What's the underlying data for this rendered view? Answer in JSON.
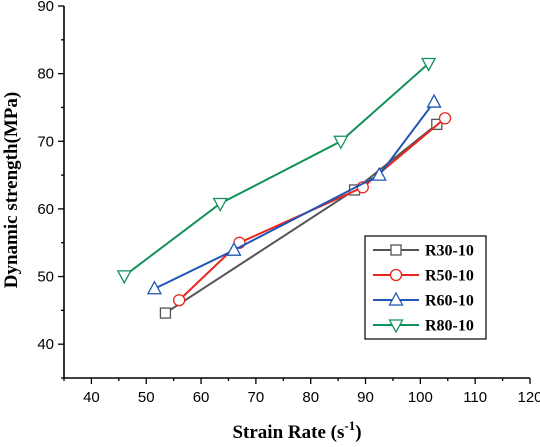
{
  "chart_data": {
    "type": "line",
    "title": "",
    "xlabel": "Strain Rate (s",
    "xlabel_sup": "-1",
    "xlabel_end": ")",
    "ylabel": "Dynamic strength(MPa)",
    "xlim": [
      35,
      120
    ],
    "ylim": [
      35,
      90
    ],
    "xticks": [
      "40",
      "50",
      "60",
      "70",
      "80",
      "90",
      "100",
      "110",
      "120"
    ],
    "yticks": [
      "40",
      "50",
      "60",
      "70",
      "80",
      "90"
    ],
    "legend_placement": "lower-right",
    "grid": false,
    "series": [
      {
        "name": "R30-10",
        "color": "#555555",
        "marker": "square",
        "x": [
          53.5,
          88,
          103
        ],
        "y": [
          44.6,
          62.8,
          72.5
        ]
      },
      {
        "name": "R50-10",
        "color": "#e8261f",
        "marker": "circle",
        "x": [
          56,
          67,
          89.5,
          104.5
        ],
        "y": [
          46.5,
          55,
          63.2,
          73.4
        ]
      },
      {
        "name": "R60-10",
        "color": "#1f56b3",
        "marker": "triangle-up",
        "x": [
          51.5,
          66,
          92.5,
          102.5
        ],
        "y": [
          48.2,
          53.9,
          65,
          75.8
        ]
      },
      {
        "name": "R80-10",
        "color": "#139158",
        "marker": "triangle-down",
        "x": [
          46,
          63.5,
          85.5,
          101.5
        ],
        "y": [
          50.1,
          60.8,
          70,
          81.5
        ]
      }
    ]
  }
}
